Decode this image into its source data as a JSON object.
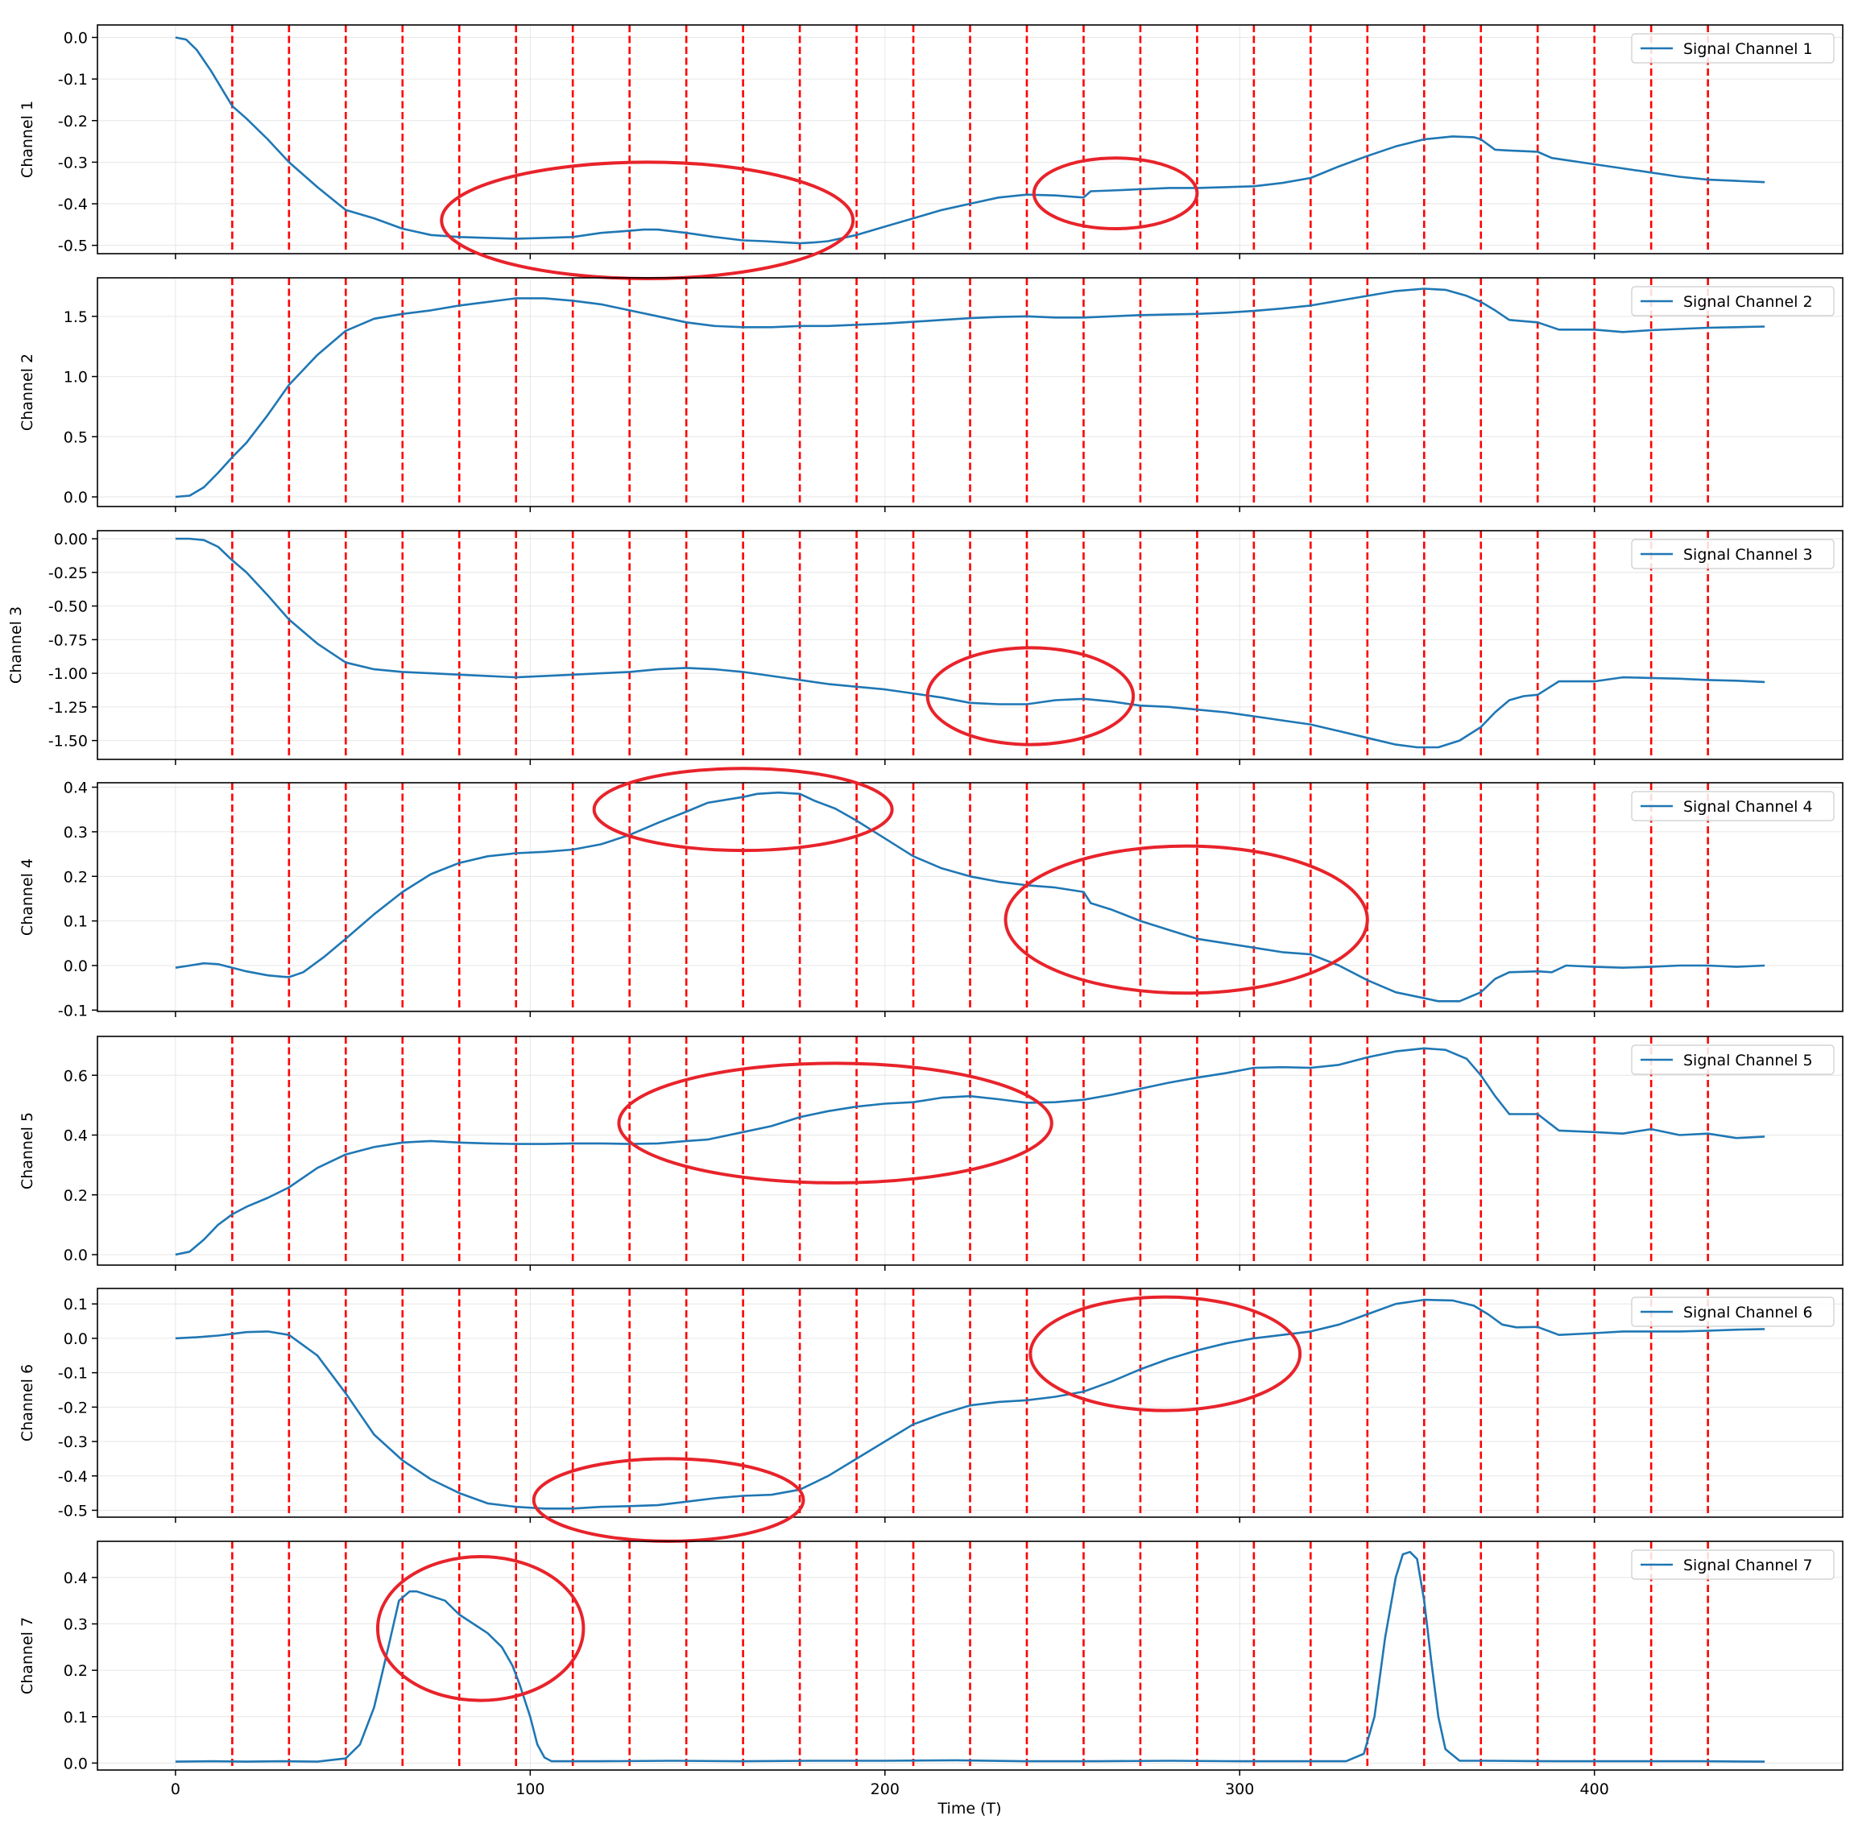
{
  "chart_data": {
    "type": "line",
    "xlabel": "Time (T)",
    "x_ticks": [
      0,
      100,
      200,
      300,
      400
    ],
    "xlim": [
      -22,
      470
    ],
    "grid": true,
    "legend_placement": "top-right",
    "colors": {
      "line": "#1f77b4",
      "vline": "#ff0000",
      "ellipse": "#e8232b"
    },
    "vlines": [
      16,
      32,
      48,
      64,
      80,
      96,
      112,
      128,
      144,
      160,
      176,
      192,
      208,
      224,
      240,
      256,
      272,
      288,
      304,
      320,
      336,
      352,
      368,
      384,
      400,
      416,
      432
    ],
    "panels": [
      {
        "ylabel": "Channel 1",
        "legend": "Signal Channel 1",
        "ylim": [
          -0.52,
          0.03
        ],
        "y_ticks": [
          0.0,
          -0.1,
          -0.2,
          -0.3,
          -0.4,
          -0.5
        ],
        "y_tick_labels": [
          "0.0",
          "-0.1",
          "-0.2",
          "-0.3",
          "-0.4",
          "-0.5"
        ],
        "x": [
          0,
          3,
          6,
          10,
          16,
          20,
          26,
          32,
          40,
          48,
          56,
          64,
          72,
          80,
          88,
          96,
          104,
          112,
          120,
          128,
          132,
          136,
          144,
          152,
          160,
          166,
          172,
          176,
          180,
          184,
          192,
          200,
          208,
          216,
          224,
          232,
          240,
          248,
          256,
          258,
          264,
          272,
          280,
          288,
          296,
          304,
          312,
          320,
          328,
          336,
          344,
          352,
          360,
          366,
          368,
          372,
          376,
          384,
          388,
          400,
          408,
          416,
          424,
          432,
          440,
          448
        ],
        "values": [
          0,
          -0.005,
          -0.03,
          -0.08,
          -0.165,
          -0.195,
          -0.245,
          -0.3,
          -0.36,
          -0.415,
          -0.435,
          -0.46,
          -0.475,
          -0.48,
          -0.482,
          -0.484,
          -0.482,
          -0.48,
          -0.47,
          -0.465,
          -0.462,
          -0.462,
          -0.47,
          -0.48,
          -0.488,
          -0.49,
          -0.493,
          -0.495,
          -0.493,
          -0.49,
          -0.475,
          -0.455,
          -0.435,
          -0.415,
          -0.4,
          -0.385,
          -0.378,
          -0.38,
          -0.385,
          -0.37,
          -0.368,
          -0.365,
          -0.362,
          -0.362,
          -0.36,
          -0.358,
          -0.35,
          -0.338,
          -0.31,
          -0.285,
          -0.262,
          -0.245,
          -0.238,
          -0.24,
          -0.245,
          -0.27,
          -0.272,
          -0.275,
          -0.29,
          -0.305,
          -0.315,
          -0.325,
          -0.335,
          -0.342,
          -0.345,
          -0.348
        ],
        "ellipses": [
          {
            "cx": 133,
            "cy": -0.44,
            "rx": 58,
            "ry": 0.14
          },
          {
            "cx": 265,
            "cy": -0.375,
            "rx": 23,
            "ry": 0.085
          }
        ]
      },
      {
        "ylabel": "Channel 2",
        "legend": "Signal Channel 2",
        "ylim": [
          -0.08,
          1.82
        ],
        "y_ticks": [
          0.0,
          0.5,
          1.0,
          1.5
        ],
        "y_tick_labels": [
          "0.0",
          "0.5",
          "1.0",
          "1.5"
        ],
        "x": [
          0,
          4,
          8,
          12,
          16,
          20,
          26,
          32,
          40,
          48,
          56,
          64,
          72,
          80,
          88,
          96,
          104,
          112,
          120,
          128,
          136,
          144,
          152,
          160,
          168,
          176,
          184,
          192,
          200,
          208,
          216,
          224,
          232,
          240,
          248,
          256,
          264,
          272,
          280,
          288,
          296,
          304,
          312,
          320,
          328,
          336,
          344,
          352,
          358,
          364,
          368,
          372,
          376,
          384,
          390,
          400,
          408,
          416,
          424,
          432,
          440,
          448
        ],
        "values": [
          0,
          0.01,
          0.08,
          0.2,
          0.33,
          0.45,
          0.68,
          0.93,
          1.18,
          1.38,
          1.48,
          1.52,
          1.55,
          1.59,
          1.62,
          1.65,
          1.65,
          1.63,
          1.6,
          1.55,
          1.5,
          1.45,
          1.42,
          1.41,
          1.41,
          1.42,
          1.42,
          1.43,
          1.44,
          1.455,
          1.47,
          1.485,
          1.495,
          1.5,
          1.49,
          1.49,
          1.5,
          1.51,
          1.515,
          1.52,
          1.53,
          1.545,
          1.565,
          1.59,
          1.63,
          1.67,
          1.71,
          1.73,
          1.72,
          1.67,
          1.62,
          1.55,
          1.47,
          1.45,
          1.39,
          1.39,
          1.37,
          1.385,
          1.395,
          1.405,
          1.41,
          1.415
        ],
        "ellipses": []
      },
      {
        "ylabel": "Channel 3",
        "legend": "Signal Channel 3",
        "ylim": [
          -1.64,
          0.06
        ],
        "y_ticks": [
          0.0,
          -0.25,
          -0.5,
          -0.75,
          -1.0,
          -1.25,
          -1.5
        ],
        "y_tick_labels": [
          "0.00",
          "-0.25",
          "-0.50",
          "-0.75",
          "-1.00",
          "-1.25",
          "-1.50"
        ],
        "x": [
          0,
          4,
          8,
          12,
          16,
          20,
          26,
          32,
          40,
          48,
          56,
          64,
          72,
          80,
          88,
          96,
          104,
          112,
          120,
          128,
          136,
          144,
          152,
          160,
          168,
          176,
          184,
          192,
          200,
          208,
          216,
          224,
          232,
          240,
          248,
          256,
          264,
          272,
          280,
          288,
          296,
          304,
          312,
          320,
          328,
          336,
          344,
          350,
          356,
          362,
          368,
          372,
          376,
          380,
          384,
          390,
          400,
          408,
          416,
          424,
          432,
          440,
          448
        ],
        "values": [
          0,
          0,
          -0.01,
          -0.06,
          -0.16,
          -0.25,
          -0.42,
          -0.6,
          -0.78,
          -0.92,
          -0.97,
          -0.99,
          -1.0,
          -1.01,
          -1.02,
          -1.03,
          -1.02,
          -1.01,
          -1.0,
          -0.99,
          -0.97,
          -0.96,
          -0.97,
          -0.99,
          -1.02,
          -1.05,
          -1.08,
          -1.1,
          -1.12,
          -1.15,
          -1.18,
          -1.22,
          -1.23,
          -1.23,
          -1.2,
          -1.19,
          -1.21,
          -1.24,
          -1.25,
          -1.27,
          -1.29,
          -1.32,
          -1.35,
          -1.38,
          -1.43,
          -1.48,
          -1.53,
          -1.55,
          -1.55,
          -1.5,
          -1.4,
          -1.29,
          -1.2,
          -1.17,
          -1.16,
          -1.06,
          -1.06,
          -1.03,
          -1.035,
          -1.04,
          -1.05,
          -1.055,
          -1.065
        ],
        "ellipses": [
          {
            "cx": 241,
            "cy": -1.17,
            "rx": 29,
            "ry": 0.36
          }
        ]
      },
      {
        "ylabel": "Channel 4",
        "legend": "Signal Channel 4",
        "ylim": [
          -0.103,
          0.41
        ],
        "y_ticks": [
          0.4,
          0.3,
          0.2,
          0.1,
          0.0,
          -0.1
        ],
        "y_tick_labels": [
          "0.4",
          "0.3",
          "0.2",
          "0.1",
          "0.0",
          "-0.1"
        ],
        "x": [
          0,
          4,
          8,
          12,
          16,
          20,
          26,
          30,
          32,
          36,
          42,
          48,
          56,
          64,
          72,
          80,
          88,
          96,
          104,
          112,
          120,
          128,
          136,
          144,
          150,
          160,
          164,
          170,
          176,
          180,
          186,
          192,
          200,
          208,
          216,
          224,
          232,
          240,
          248,
          256,
          258,
          264,
          272,
          280,
          288,
          296,
          304,
          312,
          320,
          328,
          336,
          344,
          350,
          356,
          362,
          368,
          372,
          376,
          384,
          388,
          392,
          400,
          408,
          416,
          424,
          432,
          440,
          448
        ],
        "values": [
          -0.005,
          0.0,
          0.005,
          0.003,
          -0.005,
          -0.013,
          -0.022,
          -0.025,
          -0.026,
          -0.015,
          0.02,
          0.06,
          0.115,
          0.165,
          0.205,
          0.23,
          0.245,
          0.252,
          0.255,
          0.26,
          0.272,
          0.293,
          0.32,
          0.345,
          0.365,
          0.378,
          0.385,
          0.388,
          0.385,
          0.37,
          0.352,
          0.325,
          0.285,
          0.245,
          0.218,
          0.2,
          0.188,
          0.18,
          0.175,
          0.165,
          0.14,
          0.125,
          0.1,
          0.08,
          0.06,
          0.05,
          0.04,
          0.03,
          0.025,
          0.0,
          -0.033,
          -0.06,
          -0.07,
          -0.08,
          -0.08,
          -0.06,
          -0.03,
          -0.015,
          -0.013,
          -0.015,
          0.0,
          -0.003,
          -0.005,
          -0.003,
          0.0,
          0.0,
          -0.003,
          0.0
        ],
        "ellipses": [
          {
            "cx": 160,
            "cy": 0.35,
            "rx": 42,
            "ry": 0.092
          },
          {
            "cx": 285,
            "cy": 0.103,
            "rx": 51,
            "ry": 0.165
          }
        ]
      },
      {
        "ylabel": "Channel 5",
        "legend": "Signal Channel 5",
        "ylim": [
          -0.035,
          0.73
        ],
        "y_ticks": [
          0.0,
          0.2,
          0.4,
          0.6
        ],
        "y_tick_labels": [
          "0.0",
          "0.2",
          "0.4",
          "0.6"
        ],
        "x": [
          0,
          4,
          8,
          12,
          16,
          20,
          26,
          32,
          40,
          48,
          56,
          64,
          72,
          80,
          88,
          96,
          104,
          112,
          120,
          128,
          136,
          144,
          150,
          160,
          168,
          176,
          184,
          192,
          200,
          208,
          216,
          224,
          232,
          240,
          248,
          256,
          264,
          272,
          280,
          288,
          296,
          304,
          312,
          320,
          328,
          336,
          344,
          352,
          358,
          364,
          368,
          372,
          376,
          384,
          390,
          400,
          408,
          416,
          424,
          432,
          440,
          448
        ],
        "values": [
          0,
          0.01,
          0.05,
          0.1,
          0.135,
          0.16,
          0.19,
          0.225,
          0.29,
          0.335,
          0.36,
          0.375,
          0.38,
          0.375,
          0.372,
          0.37,
          0.37,
          0.372,
          0.372,
          0.37,
          0.372,
          0.38,
          0.385,
          0.41,
          0.43,
          0.46,
          0.48,
          0.495,
          0.505,
          0.51,
          0.525,
          0.53,
          0.52,
          0.508,
          0.51,
          0.518,
          0.535,
          0.555,
          0.575,
          0.592,
          0.607,
          0.625,
          0.627,
          0.625,
          0.635,
          0.66,
          0.68,
          0.69,
          0.685,
          0.655,
          0.6,
          0.53,
          0.47,
          0.47,
          0.415,
          0.41,
          0.405,
          0.42,
          0.4,
          0.405,
          0.39,
          0.395
        ],
        "ellipses": [
          {
            "cx": 186,
            "cy": 0.44,
            "rx": 61,
            "ry": 0.2
          }
        ]
      },
      {
        "ylabel": "Channel 6",
        "legend": "Signal Channel 6",
        "ylim": [
          -0.52,
          0.145
        ],
        "y_ticks": [
          0.1,
          0.0,
          -0.1,
          -0.2,
          -0.3,
          -0.4,
          -0.5
        ],
        "y_tick_labels": [
          "0.1",
          "0.0",
          "-0.1",
          "-0.2",
          "-0.3",
          "-0.4",
          "-0.5"
        ],
        "x": [
          0,
          6,
          12,
          16,
          20,
          26,
          32,
          40,
          48,
          56,
          64,
          72,
          80,
          88,
          96,
          104,
          112,
          120,
          128,
          136,
          144,
          152,
          160,
          168,
          176,
          184,
          192,
          200,
          208,
          216,
          224,
          232,
          240,
          248,
          256,
          264,
          272,
          280,
          288,
          296,
          304,
          312,
          320,
          328,
          336,
          344,
          352,
          360,
          366,
          370,
          374,
          378,
          384,
          390,
          400,
          408,
          416,
          424,
          432,
          440,
          448
        ],
        "values": [
          0,
          0.003,
          0.008,
          0.013,
          0.018,
          0.02,
          0.01,
          -0.05,
          -0.16,
          -0.28,
          -0.355,
          -0.41,
          -0.45,
          -0.48,
          -0.49,
          -0.495,
          -0.495,
          -0.49,
          -0.488,
          -0.485,
          -0.475,
          -0.465,
          -0.458,
          -0.455,
          -0.44,
          -0.4,
          -0.35,
          -0.3,
          -0.25,
          -0.22,
          -0.195,
          -0.185,
          -0.18,
          -0.17,
          -0.155,
          -0.125,
          -0.09,
          -0.06,
          -0.035,
          -0.015,
          0.0,
          0.01,
          0.02,
          0.04,
          0.07,
          0.1,
          0.112,
          0.11,
          0.095,
          0.07,
          0.04,
          0.032,
          0.033,
          0.01,
          0.015,
          0.02,
          0.02,
          0.02,
          0.022,
          0.025,
          0.027
        ],
        "ellipses": [
          {
            "cx": 279,
            "cy": -0.045,
            "rx": 38,
            "ry": 0.165
          },
          {
            "cx": 139,
            "cy": -0.47,
            "rx": 38,
            "ry": 0.12
          }
        ]
      },
      {
        "ylabel": "Channel 7",
        "legend": "Signal Channel 7",
        "ylim": [
          -0.015,
          0.478
        ],
        "y_ticks": [
          0.0,
          0.1,
          0.2,
          0.3,
          0.4
        ],
        "y_tick_labels": [
          "0.0",
          "0.1",
          "0.2",
          "0.3",
          "0.4"
        ],
        "x": [
          0,
          10,
          20,
          30,
          40,
          48,
          52,
          56,
          60,
          63,
          66,
          68,
          72,
          76,
          80,
          84,
          88,
          92,
          95,
          97,
          100,
          102,
          104,
          106,
          110,
          120,
          140,
          160,
          180,
          200,
          220,
          240,
          260,
          280,
          300,
          320,
          330,
          335,
          338,
          341,
          344,
          346,
          348,
          350,
          352,
          354,
          356,
          358,
          362,
          370,
          390,
          410,
          430,
          448
        ],
        "values": [
          0.003,
          0.004,
          0.003,
          0.004,
          0.003,
          0.01,
          0.04,
          0.12,
          0.25,
          0.35,
          0.37,
          0.37,
          0.36,
          0.35,
          0.32,
          0.3,
          0.28,
          0.25,
          0.21,
          0.17,
          0.1,
          0.04,
          0.012,
          0.004,
          0.004,
          0.004,
          0.005,
          0.004,
          0.005,
          0.005,
          0.006,
          0.004,
          0.004,
          0.005,
          0.004,
          0.004,
          0.004,
          0.02,
          0.1,
          0.27,
          0.4,
          0.45,
          0.455,
          0.44,
          0.35,
          0.22,
          0.1,
          0.03,
          0.005,
          0.005,
          0.004,
          0.004,
          0.004,
          0.003
        ],
        "ellipses": [
          {
            "cx": 86,
            "cy": 0.29,
            "rx": 29,
            "ry": 0.155
          }
        ]
      }
    ]
  }
}
